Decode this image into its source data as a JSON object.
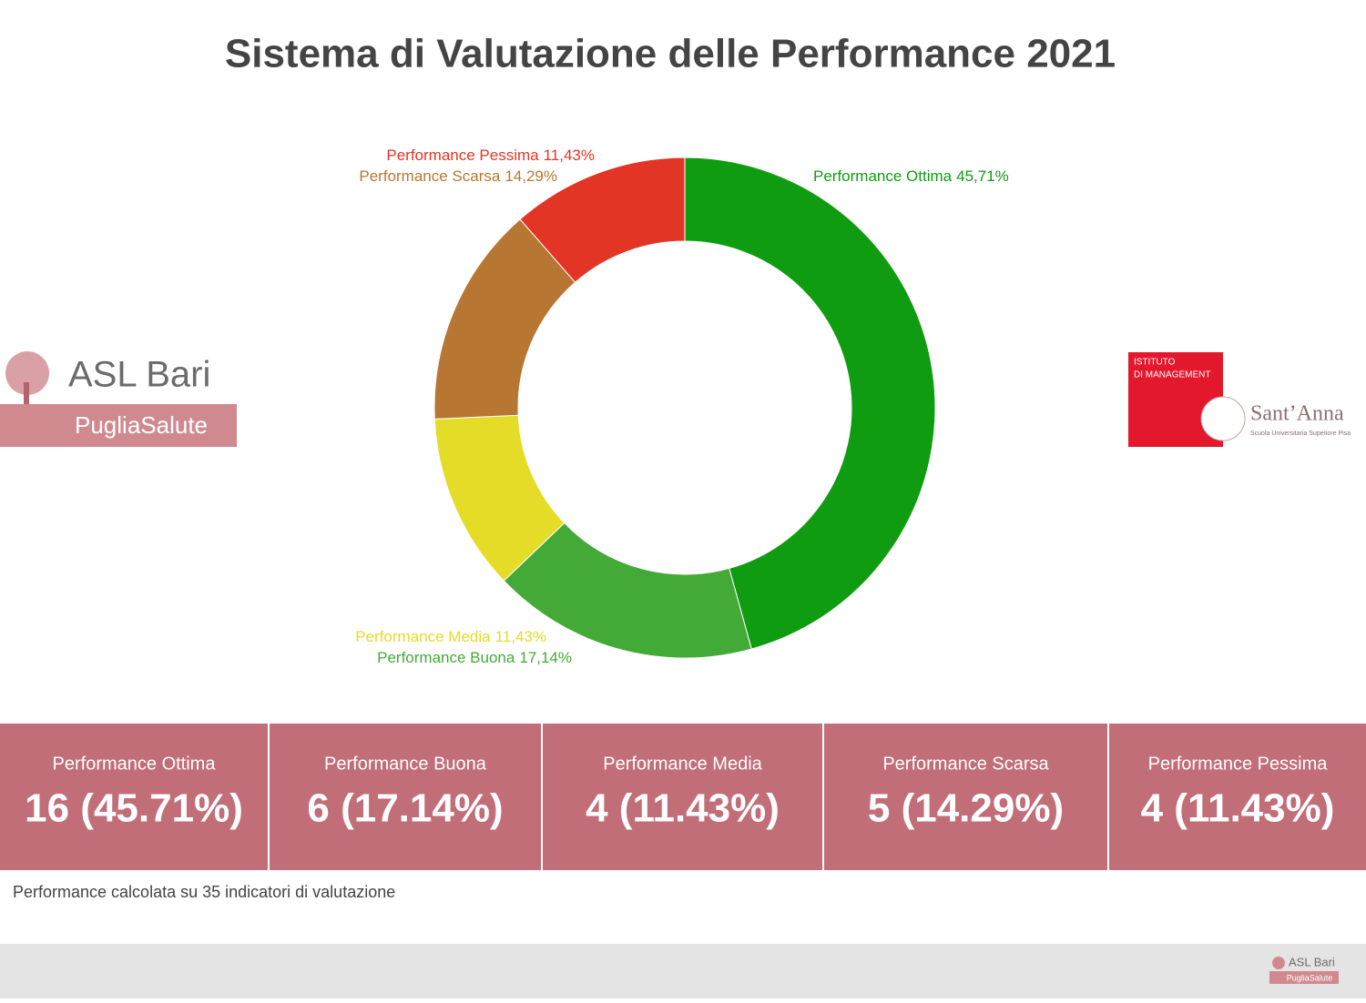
{
  "chart_data": {
    "type": "pie",
    "title": "Sistema di Valutazione delle Performance 2021",
    "categories": [
      "Performance Ottima",
      "Performance Buona",
      "Performance Media",
      "Performance Scarsa",
      "Performance Pessima"
    ],
    "values": [
      45.71,
      17.14,
      11.43,
      14.29,
      11.43
    ],
    "value_labels": [
      "45,71%",
      "17,14%",
      "11,43%",
      "14,29%",
      "11,43%"
    ],
    "colors": [
      "#109c10",
      "#43aa37",
      "#e4dc26",
      "#b87633",
      "#e33525"
    ]
  },
  "cards": [
    {
      "label": "Performance Ottima",
      "value": "16 (45.71%)"
    },
    {
      "label": "Performance Buona",
      "value": "6 (17.14%)"
    },
    {
      "label": "Performance Media",
      "value": "4 (11.43%)"
    },
    {
      "label": "Performance Scarsa",
      "value": "5 (14.29%)"
    },
    {
      "label": "Performance Pessima",
      "value": "4 (11.43%)"
    }
  ],
  "footnote": "Performance calcolata su 35 indicatori di valutazione",
  "logos": {
    "asl": "ASL Bari",
    "puglia": "PugliaSalute",
    "istituto_1": "ISTITUTO",
    "istituto_2": "DI MANAGEMENT",
    "santanna": "Sant’Anna",
    "scuola": "Scuola Universitaria Superiore Pisa"
  }
}
